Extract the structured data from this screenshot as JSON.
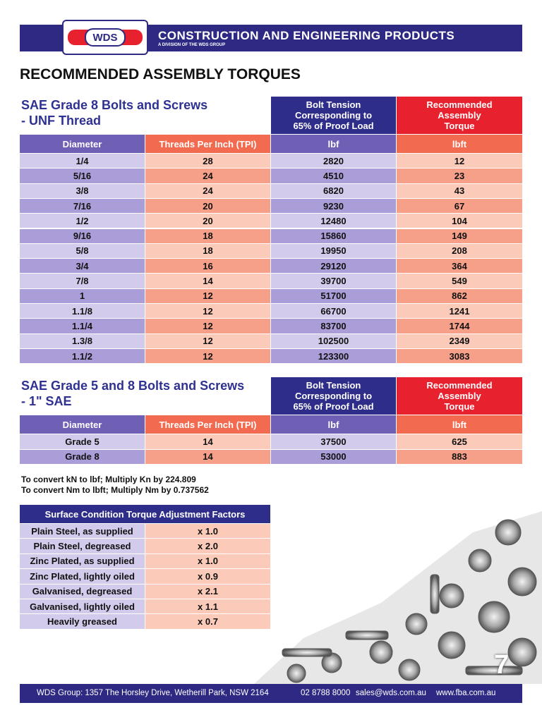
{
  "header": {
    "logo": "WDS",
    "title": "CONSTRUCTION AND ENGINEERING PRODUCTS",
    "subtitle": "A DIVISION OF THE WDS GROUP"
  },
  "page_title": "RECOMMENDED ASSEMBLY TORQUES",
  "tables": [
    {
      "title_lines": [
        "SAE Grade 8 Bolts and Screws",
        "- UNF Thread"
      ],
      "group_headers": [
        [
          "Bolt Tension",
          "Corresponding to",
          "65% of Proof Load"
        ],
        [
          "Recommended",
          "Assembly",
          "Torque"
        ]
      ],
      "columns": [
        "Diameter",
        "Threads Per Inch (TPI)",
        "lbf",
        "lbft"
      ],
      "rows": [
        [
          "1/4",
          28,
          2820,
          12
        ],
        [
          "5/16",
          24,
          4510,
          23
        ],
        [
          "3/8",
          24,
          6820,
          43
        ],
        [
          "7/16",
          20,
          9230,
          67
        ],
        [
          "1/2",
          20,
          12480,
          104
        ],
        [
          "9/16",
          18,
          15860,
          149
        ],
        [
          "5/8",
          18,
          19950,
          208
        ],
        [
          "3/4",
          16,
          29120,
          364
        ],
        [
          "7/8",
          14,
          39700,
          549
        ],
        [
          "1",
          12,
          51700,
          862
        ],
        [
          "1.1/8",
          12,
          66700,
          1241
        ],
        [
          "1.1/4",
          12,
          83700,
          1744
        ],
        [
          "1.3/8",
          12,
          102500,
          2349
        ],
        [
          "1.1/2",
          12,
          123300,
          3083
        ]
      ]
    },
    {
      "title_lines": [
        "SAE Grade 5 and 8 Bolts and Screws",
        "- 1\" SAE"
      ],
      "group_headers": [
        [
          "Bolt Tension",
          "Corresponding to",
          "65% of Proof Load"
        ],
        [
          "Recommended",
          "Assembly",
          "Torque"
        ]
      ],
      "columns": [
        "Diameter",
        "Threads Per Inch (TPI)",
        "lbf",
        "lbft"
      ],
      "rows": [
        [
          "Grade 5",
          14,
          37500,
          625
        ],
        [
          "Grade 8",
          14,
          53000,
          883
        ]
      ]
    }
  ],
  "conversions": [
    "To convert kN to lbf; Multiply Kn by 224.809",
    "To convert Nm to lbft; Multiply Nm by 0.737562"
  ],
  "factors": {
    "title": "Surface Condition Torque Adjustment Factors",
    "rows": [
      [
        "Plain Steel, as supplied",
        "x 1.0"
      ],
      [
        "Plain Steel, degreased",
        "x 2.0"
      ],
      [
        "Zinc Plated, as supplied",
        "x 1.0"
      ],
      [
        "Zinc Plated, lightly oiled",
        "x 0.9"
      ],
      [
        "Galvanised, degreased",
        "x 2.1"
      ],
      [
        "Galvanised, lightly oiled",
        "x 1.1"
      ],
      [
        "Heavily greased",
        "x 0.7"
      ]
    ]
  },
  "page_number": "7",
  "footer": [
    "WDS Group: 1357 The Horsley Drive, Wetherill Park, NSW 2164",
    "02 8788 8000",
    "sales@wds.com.au",
    "www.fba.com.au"
  ]
}
